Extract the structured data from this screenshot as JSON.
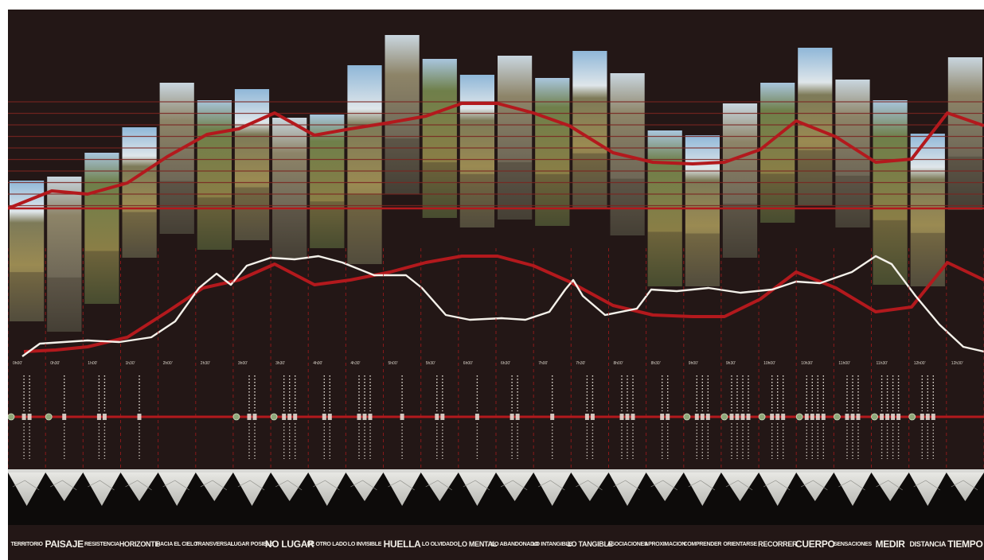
{
  "title": "",
  "panel_count": 26,
  "colors": {
    "background": "#231716",
    "accent_red": "#b3191d",
    "guide_red": "#7a2420",
    "profile_white": "#f4f1ea",
    "marker_green": "#8fa87a",
    "sky": "#9cc0dc",
    "grass": "#8a7e46",
    "rock": "#6b6455"
  },
  "time_marks": [
    "0h00'",
    "0h30'",
    "1h00'",
    "1h30'",
    "2h00'",
    "2h30'",
    "3h00'",
    "3h30'",
    "4h00'",
    "4h30'",
    "5h00'",
    "5h30'",
    "6h00'",
    "6h30'",
    "7h00'",
    "7h30'",
    "8h00'",
    "8h30'",
    "9h00'",
    "9h30'",
    "10h00'",
    "10h30'",
    "11h00'",
    "11h30'",
    "12h00'",
    "12h30'"
  ],
  "terms": [
    {
      "text": "TERRITORIO",
      "size": "sm"
    },
    {
      "text": "PAISAJE",
      "size": "lg"
    },
    {
      "text": "RESISTENCIA",
      "size": "sm"
    },
    {
      "text": "HORIZONTE",
      "size": "md"
    },
    {
      "text": "HACIA EL CIELO",
      "size": "sm"
    },
    {
      "text": "TRANSVERSAL",
      "size": "sm"
    },
    {
      "text": "LUGAR POSIBLE",
      "size": "sm"
    },
    {
      "text": "NO LUGAR",
      "size": "lg"
    },
    {
      "text": "DE OTRO LADO",
      "size": "sm"
    },
    {
      "text": "LO INVISIBLE",
      "size": "sm"
    },
    {
      "text": "HUELLA",
      "size": "lg"
    },
    {
      "text": "LO OLVIDADO",
      "size": "sm"
    },
    {
      "text": "LO MENTAL",
      "size": "md"
    },
    {
      "text": "LO ABANDONADO",
      "size": "sm"
    },
    {
      "text": "LO INTANGIBLE",
      "size": "sm"
    },
    {
      "text": "LO TANGIBLE",
      "size": "md"
    },
    {
      "text": "ASOCIACIONES",
      "size": "sm"
    },
    {
      "text": "APROXIMACION",
      "size": "sm"
    },
    {
      "text": "COMPRENDER",
      "size": "sm"
    },
    {
      "text": "ORIENTARSE",
      "size": "sm"
    },
    {
      "text": "RECORRER",
      "size": "md"
    },
    {
      "text": "CUERPO",
      "size": "lg"
    },
    {
      "text": "SENSACIONES",
      "size": "sm"
    },
    {
      "text": "MEDIR",
      "size": "lg"
    },
    {
      "text": "DISTANCIA",
      "size": "md"
    },
    {
      "text": "TIEMPO",
      "size": "lg"
    }
  ]
}
